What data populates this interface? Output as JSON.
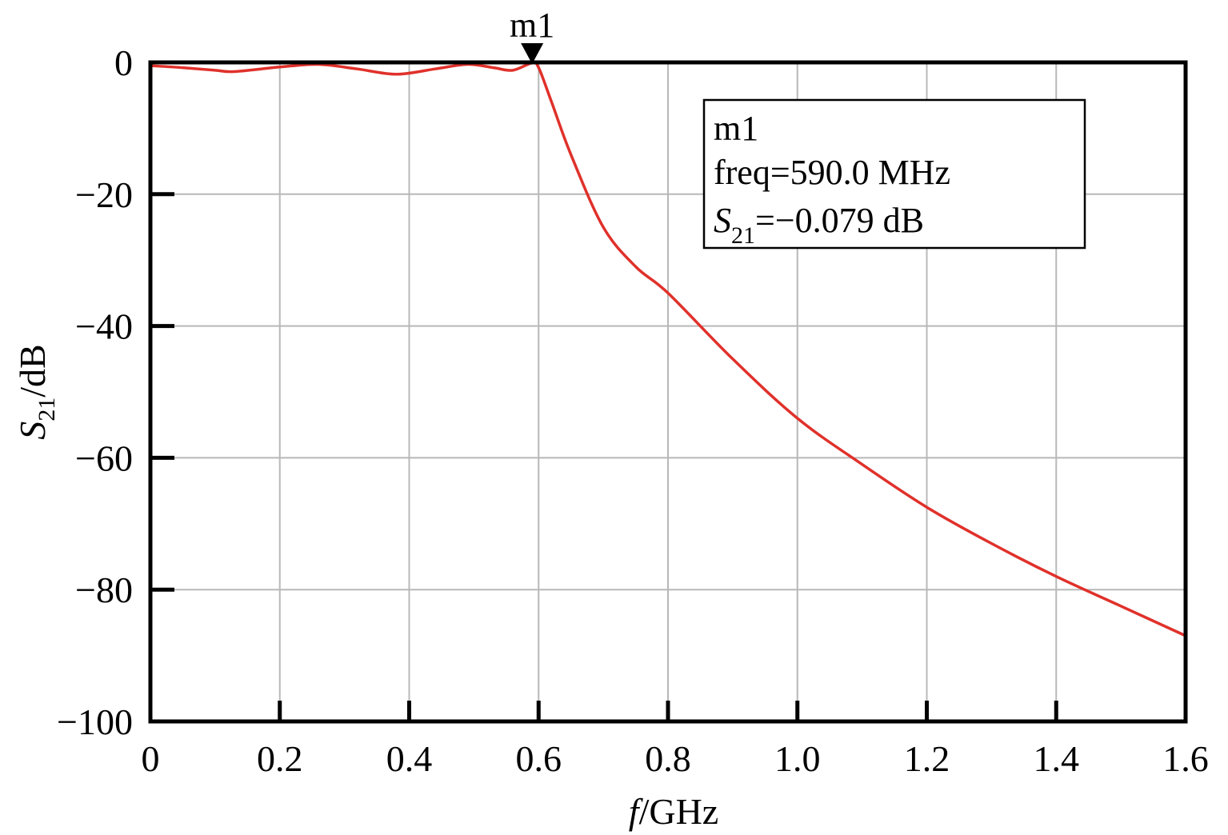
{
  "chart_data": {
    "type": "line",
    "xlabel": {
      "var": "f",
      "unit": "/GHz"
    },
    "ylabel": {
      "var": "S",
      "sub": "21",
      "unit": "/dB"
    },
    "xlim": [
      0,
      1.6
    ],
    "ylim": [
      -100,
      0
    ],
    "grid": true,
    "x_ticks": [
      0,
      0.2,
      0.4,
      0.6,
      0.8,
      1.0,
      1.2,
      1.4,
      1.6
    ],
    "x_tick_labels": [
      "0",
      "0.2",
      "0.4",
      "0.6",
      "0.8",
      "1.0",
      "1.2",
      "1.4",
      "1.6"
    ],
    "y_ticks": [
      0,
      -20,
      -40,
      -60,
      -80,
      -100
    ],
    "y_tick_labels": [
      "0",
      "−20",
      "−40",
      "−60",
      "−80",
      "−100"
    ],
    "series": [
      {
        "color": "#e0312b",
        "x": [
          0,
          0.05,
          0.1,
          0.13,
          0.2,
          0.26,
          0.32,
          0.38,
          0.44,
          0.49,
          0.53,
          0.56,
          0.59,
          0.6,
          0.62,
          0.65,
          0.7,
          0.75,
          0.8,
          0.9,
          1.0,
          1.1,
          1.2,
          1.3,
          1.4,
          1.5,
          1.6
        ],
        "y": [
          -0.5,
          -0.8,
          -1.2,
          -1.4,
          -0.7,
          -0.3,
          -1.0,
          -1.8,
          -1.0,
          -0.3,
          -0.8,
          -1.2,
          -0.079,
          -0.8,
          -6,
          -14,
          -25,
          -31,
          -35,
          -45,
          -54,
          -61,
          -67.5,
          -73,
          -78,
          -82.5,
          -87
        ]
      }
    ],
    "marker": {
      "name": "m1",
      "x": 0.59,
      "y": -0.079,
      "box_title": "m1",
      "box_freq": "freq=590.0 MHz",
      "box_param_var": "S",
      "box_param_sub": "21",
      "box_param_value": "=−0.079 dB"
    }
  },
  "colors": {
    "curve": "#e0312b",
    "grid": "#b8b8b8",
    "frame": "#000000"
  }
}
